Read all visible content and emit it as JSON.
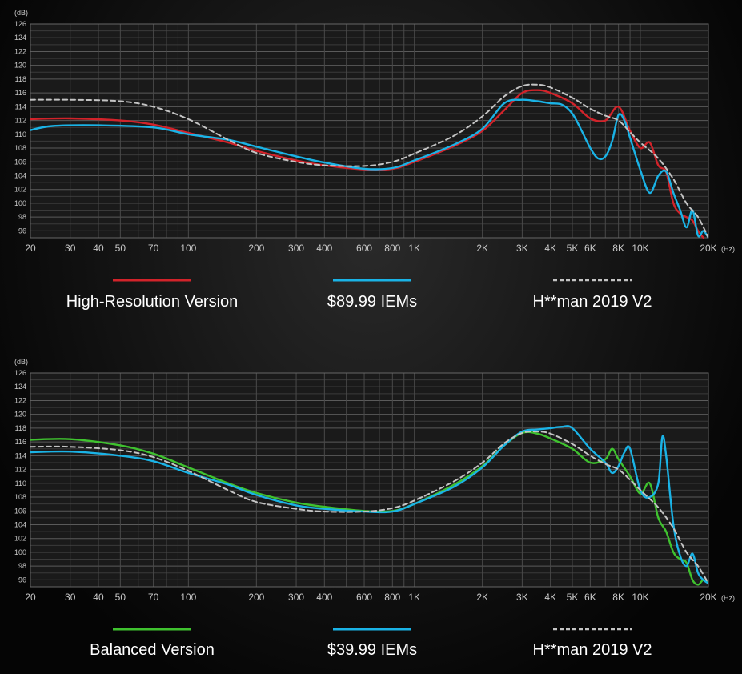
{
  "chart_data": [
    {
      "type": "line",
      "ylabel": "(dB)",
      "xlabel": "(Hz)",
      "x_scale": "log",
      "xlim": [
        20,
        20000
      ],
      "ylim": [
        95,
        126
      ],
      "y_ticks": [
        "126",
        "124",
        "122",
        "120",
        "118",
        "116",
        "114",
        "112",
        "110",
        "108",
        "106",
        "104",
        "102",
        "100",
        "98",
        "96"
      ],
      "x_ticks": [
        {
          "v": 20,
          "t": "20"
        },
        {
          "v": 30,
          "t": "30"
        },
        {
          "v": 40,
          "t": "40"
        },
        {
          "v": 50,
          "t": "50"
        },
        {
          "v": 70,
          "t": "70"
        },
        {
          "v": 100,
          "t": "100"
        },
        {
          "v": 200,
          "t": "200"
        },
        {
          "v": 300,
          "t": "300"
        },
        {
          "v": 400,
          "t": "400"
        },
        {
          "v": 600,
          "t": "600"
        },
        {
          "v": 800,
          "t": "800"
        },
        {
          "v": 1000,
          "t": "1K"
        },
        {
          "v": 2000,
          "t": "2K"
        },
        {
          "v": 3000,
          "t": "3K"
        },
        {
          "v": 4000,
          "t": "4K"
        },
        {
          "v": 5000,
          "t": "5K"
        },
        {
          "v": 6000,
          "t": "6K"
        },
        {
          "v": 8000,
          "t": "8K"
        },
        {
          "v": 10000,
          "t": "10K"
        },
        {
          "v": 20000,
          "t": "20K"
        }
      ],
      "series": [
        {
          "name": "High-Resolution Version",
          "color": "#d2232a",
          "dash": false,
          "points": [
            [
              20,
              112.2
            ],
            [
              30,
              112.3
            ],
            [
              50,
              112.0
            ],
            [
              70,
              111.4
            ],
            [
              100,
              110.2
            ],
            [
              150,
              108.8
            ],
            [
              200,
              107.6
            ],
            [
              300,
              106.2
            ],
            [
              400,
              105.5
            ],
            [
              600,
              104.9
            ],
            [
              800,
              105.0
            ],
            [
              1000,
              106.0
            ],
            [
              1500,
              108.3
            ],
            [
              2000,
              110.5
            ],
            [
              2500,
              113.5
            ],
            [
              3000,
              116.0
            ],
            [
              3500,
              116.4
            ],
            [
              4000,
              116.0
            ],
            [
              5000,
              114.5
            ],
            [
              6000,
              112.3
            ],
            [
              7000,
              112.0
            ],
            [
              8000,
              114.0
            ],
            [
              9000,
              110.5
            ],
            [
              10000,
              108.0
            ],
            [
              11000,
              108.8
            ],
            [
              12000,
              105.5
            ],
            [
              13000,
              104.5
            ],
            [
              14000,
              100.0
            ],
            [
              15000,
              98.5
            ],
            [
              16000,
              98.0
            ],
            [
              17000,
              97.5
            ],
            [
              18000,
              96.0
            ],
            [
              19000,
              95.0
            ]
          ]
        },
        {
          "name": "$89.99 IEMs",
          "color": "#1ab3e6",
          "dash": false,
          "points": [
            [
              20,
              110.6
            ],
            [
              25,
              111.2
            ],
            [
              40,
              111.3
            ],
            [
              70,
              111.0
            ],
            [
              100,
              110.0
            ],
            [
              150,
              109.2
            ],
            [
              200,
              108.2
            ],
            [
              300,
              106.8
            ],
            [
              400,
              105.9
            ],
            [
              600,
              105.0
            ],
            [
              800,
              105.1
            ],
            [
              1000,
              106.2
            ],
            [
              1500,
              108.5
            ],
            [
              2000,
              110.8
            ],
            [
              2500,
              114.5
            ],
            [
              3000,
              115.0
            ],
            [
              3500,
              114.8
            ],
            [
              4000,
              114.5
            ],
            [
              4500,
              114.3
            ],
            [
              5000,
              113.0
            ],
            [
              5500,
              110.5
            ],
            [
              6000,
              108.0
            ],
            [
              6500,
              106.5
            ],
            [
              7000,
              106.8
            ],
            [
              7500,
              109.0
            ],
            [
              8000,
              112.8
            ],
            [
              8500,
              112.0
            ],
            [
              9000,
              109.5
            ],
            [
              10000,
              104.8
            ],
            [
              11000,
              101.5
            ],
            [
              12000,
              104.0
            ],
            [
              13000,
              104.6
            ],
            [
              14000,
              101.5
            ],
            [
              15000,
              99.0
            ],
            [
              16000,
              96.5
            ],
            [
              17000,
              99.0
            ],
            [
              18000,
              95.3
            ],
            [
              19000,
              96.0
            ],
            [
              20000,
              95.0
            ]
          ]
        },
        {
          "name": "H**man 2019 V2",
          "color": "#c4c4c4",
          "dash": true,
          "points": [
            [
              20,
              115.0
            ],
            [
              30,
              115.0
            ],
            [
              50,
              114.8
            ],
            [
              70,
              114.0
            ],
            [
              100,
              112.2
            ],
            [
              150,
              109.2
            ],
            [
              200,
              107.3
            ],
            [
              300,
              106.0
            ],
            [
              400,
              105.5
            ],
            [
              600,
              105.4
            ],
            [
              800,
              106.0
            ],
            [
              1000,
              107.2
            ],
            [
              1500,
              109.8
            ],
            [
              2000,
              112.6
            ],
            [
              2500,
              115.5
            ],
            [
              3000,
              117.0
            ],
            [
              3500,
              117.2
            ],
            [
              4000,
              116.8
            ],
            [
              5000,
              115.3
            ],
            [
              6000,
              113.7
            ],
            [
              7000,
              112.7
            ],
            [
              8000,
              112.0
            ],
            [
              9000,
              110.3
            ],
            [
              10000,
              108.8
            ],
            [
              12000,
              106.5
            ],
            [
              14000,
              103.5
            ],
            [
              16000,
              100.0
            ],
            [
              18000,
              98.0
            ],
            [
              20000,
              95.0
            ]
          ]
        }
      ]
    },
    {
      "type": "line",
      "ylabel": "(dB)",
      "xlabel": "(Hz)",
      "x_scale": "log",
      "xlim": [
        20,
        20000
      ],
      "ylim": [
        95,
        126
      ],
      "y_ticks": [
        "126",
        "124",
        "122",
        "120",
        "118",
        "116",
        "114",
        "112",
        "110",
        "108",
        "106",
        "104",
        "102",
        "100",
        "98",
        "96"
      ],
      "x_ticks": [
        {
          "v": 20,
          "t": "20"
        },
        {
          "v": 30,
          "t": "30"
        },
        {
          "v": 40,
          "t": "40"
        },
        {
          "v": 50,
          "t": "50"
        },
        {
          "v": 70,
          "t": "70"
        },
        {
          "v": 100,
          "t": "100"
        },
        {
          "v": 200,
          "t": "200"
        },
        {
          "v": 300,
          "t": "300"
        },
        {
          "v": 400,
          "t": "400"
        },
        {
          "v": 600,
          "t": "600"
        },
        {
          "v": 800,
          "t": "800"
        },
        {
          "v": 1000,
          "t": "1K"
        },
        {
          "v": 2000,
          "t": "2K"
        },
        {
          "v": 3000,
          "t": "3K"
        },
        {
          "v": 4000,
          "t": "4K"
        },
        {
          "v": 5000,
          "t": "5K"
        },
        {
          "v": 6000,
          "t": "6K"
        },
        {
          "v": 8000,
          "t": "8K"
        },
        {
          "v": 10000,
          "t": "10K"
        },
        {
          "v": 20000,
          "t": "20K"
        }
      ],
      "series": [
        {
          "name": "Balanced Version",
          "color": "#3fc22f",
          "dash": false,
          "points": [
            [
              20,
              116.3
            ],
            [
              30,
              116.4
            ],
            [
              50,
              115.5
            ],
            [
              70,
              114.3
            ],
            [
              100,
              112.3
            ],
            [
              150,
              110.0
            ],
            [
              200,
              108.6
            ],
            [
              300,
              107.2
            ],
            [
              400,
              106.6
            ],
            [
              600,
              106.0
            ],
            [
              800,
              106.0
            ],
            [
              1000,
              107.0
            ],
            [
              1500,
              109.8
            ],
            [
              2000,
              112.5
            ],
            [
              2500,
              115.5
            ],
            [
              3000,
              117.3
            ],
            [
              3500,
              117.2
            ],
            [
              4000,
              116.5
            ],
            [
              5000,
              115.0
            ],
            [
              6000,
              113.0
            ],
            [
              7000,
              113.5
            ],
            [
              7500,
              115.0
            ],
            [
              8000,
              113.5
            ],
            [
              9000,
              111.0
            ],
            [
              10000,
              108.5
            ],
            [
              11000,
              110.0
            ],
            [
              12000,
              105.0
            ],
            [
              13000,
              103.0
            ],
            [
              14000,
              100.0
            ],
            [
              15000,
              99.0
            ],
            [
              16000,
              98.5
            ],
            [
              17000,
              96.0
            ],
            [
              18000,
              95.3
            ],
            [
              19000,
              96.0
            ],
            [
              20000,
              95.5
            ]
          ]
        },
        {
          "name": "$39.99 IEMs",
          "color": "#1ab3e6",
          "dash": false,
          "points": [
            [
              20,
              114.5
            ],
            [
              30,
              114.6
            ],
            [
              50,
              114.0
            ],
            [
              70,
              113.2
            ],
            [
              100,
              111.5
            ],
            [
              150,
              109.8
            ],
            [
              200,
              108.3
            ],
            [
              300,
              106.8
            ],
            [
              400,
              106.3
            ],
            [
              600,
              105.9
            ],
            [
              800,
              105.9
            ],
            [
              1000,
              107.0
            ],
            [
              1500,
              109.5
            ],
            [
              2000,
              112.3
            ],
            [
              2500,
              115.5
            ],
            [
              3000,
              117.5
            ],
            [
              3500,
              117.8
            ],
            [
              4000,
              118.0
            ],
            [
              4500,
              118.2
            ],
            [
              5000,
              118.0
            ],
            [
              6000,
              115.0
            ],
            [
              7000,
              113.0
            ],
            [
              7500,
              111.5
            ],
            [
              8000,
              112.5
            ],
            [
              8500,
              114.5
            ],
            [
              9000,
              115.0
            ],
            [
              10000,
              109.0
            ],
            [
              11000,
              108.0
            ],
            [
              12000,
              110.0
            ],
            [
              12500,
              116.7
            ],
            [
              13000,
              114.0
            ],
            [
              14000,
              104.0
            ],
            [
              15000,
              99.5
            ],
            [
              16000,
              98.0
            ],
            [
              17000,
              99.8
            ],
            [
              18000,
              97.0
            ],
            [
              19000,
              96.0
            ],
            [
              20000,
              95.5
            ]
          ]
        },
        {
          "name": "H**man 2019 V2",
          "color": "#c4c4c4",
          "dash": true,
          "points": [
            [
              20,
              115.3
            ],
            [
              30,
              115.3
            ],
            [
              50,
              114.8
            ],
            [
              70,
              113.8
            ],
            [
              100,
              111.8
            ],
            [
              150,
              109.0
            ],
            [
              200,
              107.3
            ],
            [
              300,
              106.3
            ],
            [
              400,
              105.9
            ],
            [
              600,
              105.9
            ],
            [
              800,
              106.4
            ],
            [
              1000,
              107.5
            ],
            [
              1500,
              110.3
            ],
            [
              2000,
              113.0
            ],
            [
              2500,
              115.8
            ],
            [
              3000,
              117.3
            ],
            [
              3500,
              117.5
            ],
            [
              4000,
              117.2
            ],
            [
              5000,
              115.7
            ],
            [
              6000,
              114.0
            ],
            [
              7000,
              112.8
            ],
            [
              8000,
              112.0
            ],
            [
              9000,
              110.5
            ],
            [
              10000,
              109.0
            ],
            [
              12000,
              106.5
            ],
            [
              14000,
              103.5
            ],
            [
              16000,
              100.0
            ],
            [
              18000,
              98.0
            ],
            [
              20000,
              95.5
            ]
          ]
        }
      ]
    }
  ]
}
